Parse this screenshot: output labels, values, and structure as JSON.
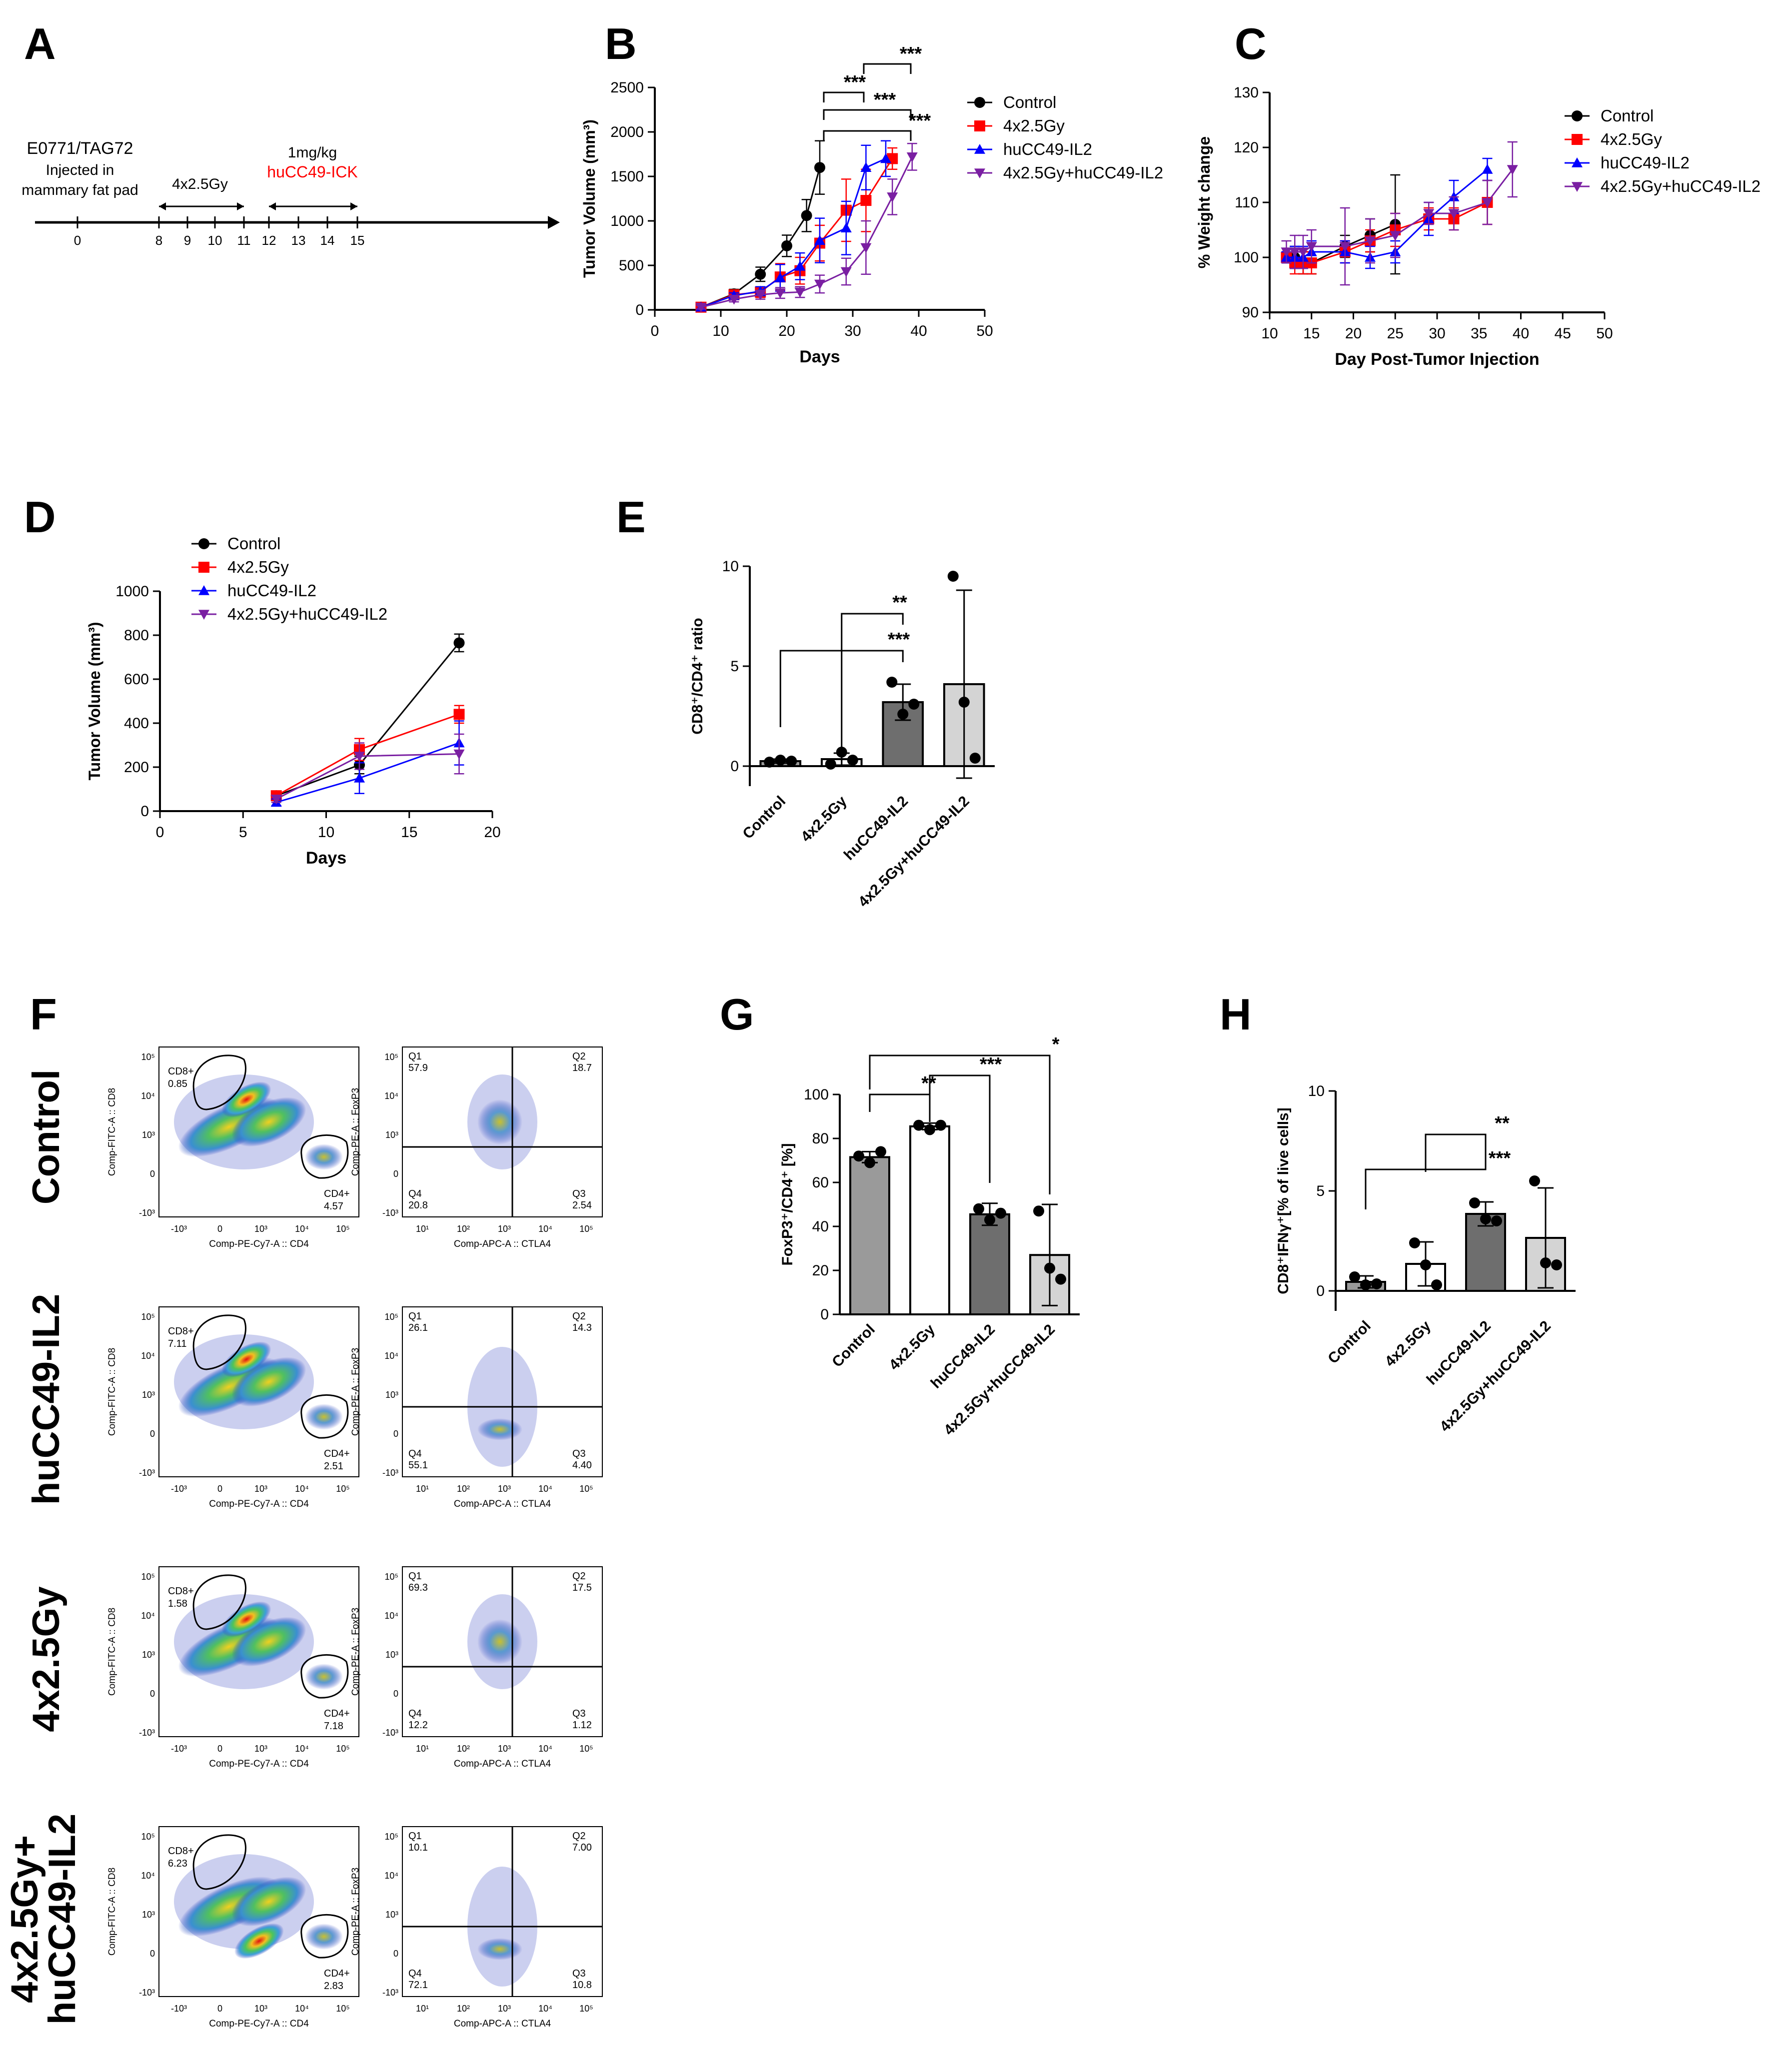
{
  "panel_letters": [
    "A",
    "B",
    "C",
    "D",
    "E",
    "F",
    "G",
    "H"
  ],
  "timeline": {
    "cell_line": "E0771/TAG72",
    "injected": "Injected in",
    "site": "mammary fat pad",
    "rt_label": "4x2.5Gy",
    "dose_label": "1mg/kg",
    "drug_label": "huCC49-ICK",
    "ticks": [
      "0",
      "8",
      "9",
      "10",
      "11",
      "12",
      "13",
      "14",
      "15"
    ],
    "colors": {
      "drug": "#ff0000"
    }
  },
  "legend_groups": [
    "Control",
    "4x2.5Gy",
    "huCC49-IL2",
    "4x2.5Gy+huCC49-IL2"
  ],
  "series_colors": {
    "Control": "#000000",
    "4x2.5Gy": "#ff0000",
    "huCC49-IL2": "#0000ff",
    "4x2.5Gy+huCC49-IL2": "#7a1fa2"
  },
  "chart_data": [
    {
      "id": "B",
      "type": "line",
      "xlabel": "Days",
      "ylabel": "Tumor Volume (mm³)",
      "xlim": [
        0,
        50
      ],
      "ylim": [
        0,
        2500
      ],
      "xticks": [
        "0",
        "10",
        "20",
        "30",
        "40",
        "50"
      ],
      "yticks": [
        "0",
        "500",
        "1000",
        "1500",
        "2000",
        "2500"
      ],
      "significance": [
        "***",
        "***",
        "***",
        "***"
      ],
      "series": [
        {
          "name": "Control",
          "x": [
            7,
            12,
            16,
            20,
            23,
            25
          ],
          "y": [
            30,
            180,
            400,
            720,
            1060,
            1600
          ],
          "err": [
            20,
            50,
            80,
            120,
            180,
            300
          ]
        },
        {
          "name": "4x2.5Gy",
          "x": [
            7,
            12,
            16,
            19,
            22,
            25,
            29,
            32,
            36
          ],
          "y": [
            30,
            170,
            200,
            370,
            440,
            750,
            1120,
            1230,
            1700
          ],
          "err": [
            20,
            40,
            60,
            150,
            150,
            200,
            350,
            350,
            120
          ]
        },
        {
          "name": "huCC49-IL2",
          "x": [
            7,
            12,
            16,
            19,
            22,
            25,
            29,
            32,
            35
          ],
          "y": [
            30,
            160,
            210,
            360,
            490,
            780,
            920,
            1600,
            1700
          ],
          "err": [
            20,
            30,
            50,
            150,
            150,
            250,
            300,
            250,
            200
          ]
        },
        {
          "name": "4x2.5Gy+huCC49-IL2",
          "x": [
            7,
            12,
            16,
            19,
            22,
            25,
            29,
            32,
            36,
            39
          ],
          "y": [
            30,
            120,
            170,
            190,
            200,
            290,
            430,
            700,
            1270,
            1720
          ],
          "err": [
            20,
            30,
            50,
            60,
            60,
            100,
            150,
            300,
            200,
            150
          ]
        }
      ]
    },
    {
      "id": "C",
      "type": "line",
      "xlabel": "Day Post-Tumor Injection",
      "ylabel": "% Weight change",
      "xlim": [
        10,
        50
      ],
      "ylim": [
        90,
        130
      ],
      "xticks": [
        "10",
        "15",
        "20",
        "25",
        "30",
        "35",
        "40",
        "45",
        "50"
      ],
      "yticks": [
        "90",
        "100",
        "110",
        "120",
        "130"
      ],
      "series": [
        {
          "name": "Control",
          "x": [
            12,
            13,
            14,
            15,
            19,
            22,
            25
          ],
          "y": [
            100,
            100,
            99,
            99,
            102,
            104,
            106
          ],
          "err": [
            1,
            2,
            2,
            2,
            2,
            3,
            9
          ]
        },
        {
          "name": "4x2.5Gy",
          "x": [
            12,
            13,
            14,
            15,
            19,
            22,
            25,
            29,
            32,
            36
          ],
          "y": [
            100,
            99,
            99,
            99,
            101,
            103,
            105,
            107,
            107,
            110
          ],
          "err": [
            1,
            2,
            2,
            2,
            2,
            2,
            3,
            2,
            2,
            4
          ]
        },
        {
          "name": "huCC49-IL2",
          "x": [
            12,
            13,
            14,
            15,
            19,
            22,
            25,
            29,
            32,
            36
          ],
          "y": [
            100,
            100,
            100,
            101,
            101,
            100,
            101,
            107,
            111,
            116
          ],
          "err": [
            1,
            2,
            2,
            2,
            2,
            2,
            2,
            3,
            3,
            2
          ]
        },
        {
          "name": "4x2.5Gy+huCC49-IL2",
          "x": [
            12,
            13,
            14,
            15,
            19,
            22,
            25,
            29,
            32,
            36,
            39
          ],
          "y": [
            101,
            101,
            101,
            102,
            102,
            103,
            104,
            108,
            108,
            110,
            116
          ],
          "err": [
            2,
            3,
            3,
            3,
            7,
            4,
            4,
            2,
            3,
            4,
            5
          ]
        }
      ]
    },
    {
      "id": "D",
      "type": "line",
      "xlabel": "Days",
      "ylabel": "Tumor Volume (mm³)",
      "xlim": [
        0,
        20
      ],
      "ylim": [
        0,
        1000
      ],
      "xticks": [
        "0",
        "5",
        "10",
        "15",
        "20"
      ],
      "yticks": [
        "0",
        "200",
        "400",
        "600",
        "800",
        "1000"
      ],
      "series": [
        {
          "name": "Control",
          "x": [
            7,
            12,
            18
          ],
          "y": [
            70,
            210,
            765
          ],
          "err": [
            15,
            40,
            40
          ]
        },
        {
          "name": "4x2.5Gy",
          "x": [
            7,
            12,
            18
          ],
          "y": [
            70,
            280,
            440
          ],
          "err": [
            15,
            50,
            40
          ]
        },
        {
          "name": "huCC49-IL2",
          "x": [
            7,
            12,
            18
          ],
          "y": [
            40,
            150,
            310
          ],
          "err": [
            15,
            70,
            100
          ]
        },
        {
          "name": "4x2.5Gy+huCC49-IL2",
          "x": [
            7,
            12,
            18
          ],
          "y": [
            55,
            250,
            260
          ],
          "err": [
            15,
            60,
            90
          ]
        }
      ]
    },
    {
      "id": "E",
      "type": "bar",
      "ylabel": "CD8⁺/CD4⁺ ratio",
      "ylim": [
        -1,
        10
      ],
      "yticks": [
        "0",
        "5",
        "10"
      ],
      "categories": [
        "Control",
        "4x2.5Gy",
        "huCC49-IL2",
        "4x2.5Gy+huCC49-IL2"
      ],
      "values": [
        0.25,
        0.35,
        3.2,
        4.1
      ],
      "err": [
        0.1,
        0.3,
        0.9,
        4.7
      ],
      "points": [
        [
          0.2,
          0.3,
          0.25
        ],
        [
          0.1,
          0.7,
          0.3
        ],
        [
          4.2,
          2.6,
          3.1
        ],
        [
          9.5,
          3.2,
          0.4
        ]
      ],
      "bar_colors": [
        "#9a9a9a",
        "#ffffff",
        "#6e6e6e",
        "#d4d4d4"
      ],
      "significance": [
        "**",
        "***"
      ]
    },
    {
      "id": "G",
      "type": "bar",
      "ylabel": "FoxP3⁺/CD4⁺ [%]",
      "ylim": [
        0,
        100
      ],
      "yticks": [
        "0",
        "20",
        "40",
        "60",
        "80",
        "100"
      ],
      "categories": [
        "Control",
        "4x2.5Gy",
        "huCC49-IL2",
        "4x2.5Gy+huCC49-IL2"
      ],
      "values": [
        71.5,
        85.5,
        45.5,
        27
      ],
      "err": [
        2.5,
        1.5,
        5,
        23
      ],
      "points": [
        [
          72,
          69,
          74
        ],
        [
          86,
          84,
          86
        ],
        [
          48,
          43,
          46
        ],
        [
          47,
          21,
          16
        ]
      ],
      "bar_colors": [
        "#9a9a9a",
        "#ffffff",
        "#6e6e6e",
        "#d4d4d4"
      ],
      "significance": [
        "**",
        "***",
        "*"
      ]
    },
    {
      "id": "H",
      "type": "bar",
      "ylabel": "CD8⁺IFNγ⁺[% of live cells]",
      "ylim": [
        -1,
        10
      ],
      "yticks": [
        "0",
        "5",
        "10"
      ],
      "categories": [
        "Control",
        "4x2.5Gy",
        "huCC49-IL2",
        "4x2.5Gy+huCC49-IL2"
      ],
      "values": [
        0.45,
        1.35,
        3.85,
        2.65
      ],
      "err": [
        0.3,
        1.1,
        0.6,
        2.5
      ],
      "points": [
        [
          0.7,
          0.3,
          0.35
        ],
        [
          2.4,
          1.3,
          0.3
        ],
        [
          4.4,
          3.6,
          3.5
        ],
        [
          5.5,
          1.4,
          1.3
        ]
      ],
      "bar_colors": [
        "#9a9a9a",
        "#ffffff",
        "#6e6e6e",
        "#d4d4d4"
      ],
      "significance": [
        "**",
        "***"
      ]
    }
  ],
  "flow": {
    "row_labels": [
      "Control",
      "huCC49-IL2",
      "4x2.5Gy",
      "4x2.5Gy+",
      "huCC49-IL2"
    ],
    "gate_cd8": "CD8+",
    "gate_cd4": "CD4+",
    "left_xlabel": "Comp-PE-Cy7-A :: CD4",
    "left_ylabel": "Comp-FITC-A :: CD8",
    "right_xlabel": "Comp-APC-A :: CTLA4",
    "right_ylabel": "Comp-PE-A :: FoxP3",
    "left_xticks": [
      "-10³",
      "0",
      "10³",
      "10⁴",
      "10⁵"
    ],
    "left_yticks": [
      "10⁵",
      "10⁴",
      "10³",
      "0",
      "-10³"
    ],
    "right_xticks": [
      "10¹",
      "10²",
      "10³",
      "10⁴",
      "10⁵"
    ],
    "right_yticks": [
      "10⁵",
      "10⁴",
      "10³",
      "0",
      "-10³"
    ],
    "quadrants": [
      "Q1",
      "Q2",
      "Q3",
      "Q4"
    ],
    "rows": [
      {
        "cd8": "0.85",
        "cd4": "4.57",
        "q1": "57.9",
        "q2": "18.7",
        "q3": "2.54",
        "q4": "20.8"
      },
      {
        "cd8": "7.11",
        "cd4": "2.51",
        "q1": "26.1",
        "q2": "14.3",
        "q3": "4.40",
        "q4": "55.1"
      },
      {
        "cd8": "1.58",
        "cd4": "7.18",
        "q1": "69.3",
        "q2": "17.5",
        "q3": "1.12",
        "q4": "12.2"
      },
      {
        "cd8": "6.23",
        "cd4": "2.83",
        "q1": "10.1",
        "q2": "7.00",
        "q3": "10.8",
        "q4": "72.1"
      }
    ]
  }
}
